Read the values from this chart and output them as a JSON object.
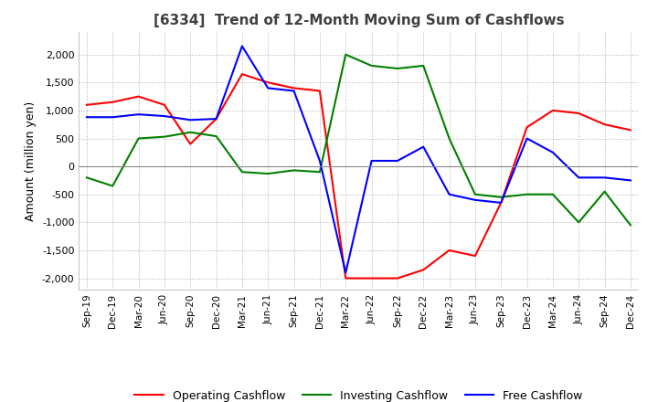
{
  "title": "[6334]  Trend of 12-Month Moving Sum of Cashflows",
  "ylabel": "Amount (million yen)",
  "ylim": [
    -2200,
    2400
  ],
  "yticks": [
    -2000,
    -1500,
    -1000,
    -500,
    0,
    500,
    1000,
    1500,
    2000
  ],
  "x_labels": [
    "Sep-19",
    "Dec-19",
    "Mar-20",
    "Jun-20",
    "Sep-20",
    "Dec-20",
    "Mar-21",
    "Jun-21",
    "Sep-21",
    "Dec-21",
    "Mar-22",
    "Jun-22",
    "Sep-22",
    "Dec-22",
    "Mar-23",
    "Jun-23",
    "Sep-23",
    "Dec-23",
    "Mar-24",
    "Jun-24",
    "Sep-24",
    "Dec-24"
  ],
  "operating": [
    1100,
    1150,
    1250,
    1100,
    400,
    850,
    1650,
    1500,
    1400,
    1350,
    -2000,
    -2000,
    -2000,
    -1850,
    -1500,
    -1600,
    -650,
    700,
    1000,
    950,
    750,
    650
  ],
  "investing": [
    -200,
    -350,
    500,
    530,
    610,
    540,
    -100,
    -130,
    -70,
    -100,
    2000,
    1800,
    1750,
    1800,
    500,
    -500,
    -550,
    -500,
    -500,
    -1000,
    -450,
    -1050
  ],
  "free": [
    880,
    880,
    930,
    900,
    830,
    850,
    2150,
    1400,
    1350,
    100,
    -1900,
    100,
    100,
    350,
    -500,
    -600,
    -650,
    500,
    250,
    -200,
    -200,
    -250
  ],
  "line_colors": [
    "#ff0000",
    "#008000",
    "#0000ff"
  ],
  "legend_labels": [
    "Operating Cashflow",
    "Investing Cashflow",
    "Free Cashflow"
  ],
  "background_color": "#ffffff",
  "grid_color": "#b0b0b0",
  "title_color": "#404040"
}
